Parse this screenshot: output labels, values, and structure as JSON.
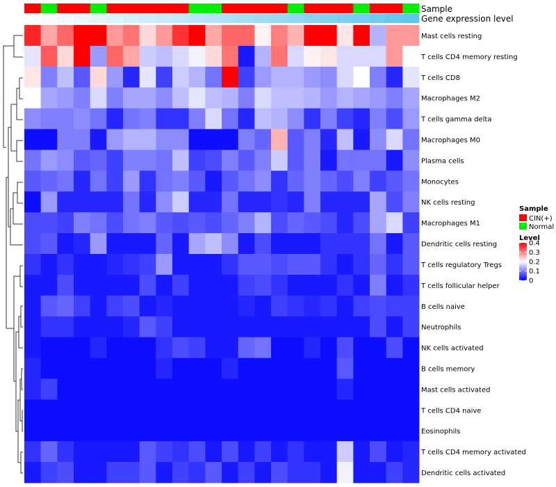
{
  "chart_data": {
    "type": "heatmap",
    "title": "",
    "annotations": {
      "sample_label": "Sample",
      "gene_label": "Gene expression level",
      "sample_groups": [
        "C",
        "N",
        "C",
        "C",
        "N",
        "C",
        "C",
        "C",
        "C",
        "C",
        "N",
        "N",
        "C",
        "C",
        "C",
        "C",
        "N",
        "C",
        "C",
        "C",
        "N",
        "C",
        "C",
        "N"
      ],
      "gene_levels": [
        0.0,
        0.04,
        0.09,
        0.13,
        0.17,
        0.22,
        0.26,
        0.3,
        0.35,
        0.39,
        0.43,
        0.48,
        0.52,
        0.57,
        0.61,
        0.65,
        0.7,
        0.74,
        0.78,
        0.83,
        0.87,
        0.91,
        0.96,
        1.0
      ]
    },
    "legend": {
      "sample_title": "Sample",
      "sample_items": [
        {
          "key": "C",
          "label": "CIN(+)",
          "color": "#ff0000"
        },
        {
          "key": "N",
          "label": "Normal",
          "color": "#00ee00"
        }
      ],
      "level_title": "Level",
      "level_ticks": [
        "0.4",
        "0.3",
        "0.2",
        "0.1",
        "0"
      ],
      "level_tick_values": [
        0.4,
        0.3,
        0.2,
        0.1,
        0
      ],
      "level_range": [
        0,
        0.4
      ],
      "low_color": "#0000ff",
      "mid_color": "#ffffff",
      "high_color": "#ff0000",
      "mid_value": 0.2
    },
    "rows": [
      "Mast cells resting",
      "T cells CD4 memory resting",
      "T cells CD8",
      "Macrophages M2",
      "T cells gamma delta",
      "Macrophages M0",
      "Plasma cells",
      "Monocytes",
      "NK cells resting",
      "Macrophages M1",
      "Dendritic cells resting",
      "T cells regulatory  Tregs",
      "T cells follicular helper",
      "B cells naive",
      "Neutrophils",
      "NK cells activated",
      "B cells memory",
      "Mast cells activated",
      "T cells CD4 naive",
      "Eosinophils",
      "T cells CD4 memory activated",
      "Dendritic cells activated"
    ],
    "values": [
      [
        0.37,
        0.27,
        0.32,
        0.4,
        0.4,
        0.28,
        0.31,
        0.23,
        0.28,
        0.36,
        0.4,
        0.27,
        0.32,
        0.32,
        0.21,
        0.3,
        0.26,
        0.4,
        0.4,
        0.22,
        0.4,
        0.14,
        0.28,
        0.28
      ],
      [
        0.18,
        0.33,
        0.23,
        0.4,
        0.12,
        0.32,
        0.27,
        0.16,
        0.15,
        0.17,
        0.19,
        0.23,
        0.31,
        0.02,
        0.14,
        0.31,
        0.17,
        0.21,
        0.22,
        0.17,
        0.17,
        0.17,
        0.28,
        0.2
      ],
      [
        0.22,
        0.1,
        0.15,
        0.07,
        0.23,
        0.12,
        0.03,
        0.18,
        0.05,
        0.16,
        0.14,
        0.09,
        0.4,
        0.05,
        0.12,
        0.14,
        0.14,
        0.12,
        0.11,
        0.17,
        0.2,
        0.1,
        0.03,
        0.18
      ],
      [
        0.2,
        0.13,
        0.12,
        0.1,
        0.17,
        0.1,
        0.13,
        0.13,
        0.11,
        0.15,
        0.18,
        0.15,
        0.14,
        0.1,
        0.17,
        0.15,
        0.15,
        0.14,
        0.12,
        0.14,
        0.13,
        0.12,
        0.1,
        0.13
      ],
      [
        0.11,
        0.1,
        0.1,
        0.11,
        0.09,
        0.03,
        0.09,
        0.1,
        0.04,
        0.04,
        0.1,
        0.17,
        0.09,
        0.03,
        0.15,
        0.14,
        0.11,
        0.04,
        0.1,
        0.05,
        0.03,
        0.1,
        0.06,
        0.12
      ],
      [
        0.01,
        0.01,
        0.1,
        0.1,
        0.02,
        0.12,
        0.14,
        0.14,
        0.11,
        0.11,
        0.01,
        0.01,
        0.01,
        0.1,
        0.08,
        0.26,
        0.07,
        0.1,
        0.03,
        0.15,
        0.02,
        0.11,
        0.17,
        0.09
      ],
      [
        0.09,
        0.12,
        0.11,
        0.07,
        0.08,
        0.05,
        0.1,
        0.1,
        0.09,
        0.15,
        0.05,
        0.06,
        0.1,
        0.07,
        0.1,
        0.16,
        0.07,
        0.1,
        0.02,
        0.09,
        0.09,
        0.09,
        0.02,
        0.11
      ],
      [
        0.07,
        0.08,
        0.09,
        0.03,
        0.09,
        0.05,
        0.12,
        0.04,
        0.09,
        0.1,
        0.07,
        0.02,
        0.07,
        0.09,
        0.11,
        0.04,
        0.08,
        0.1,
        0.08,
        0.06,
        0.1,
        0.05,
        0.07,
        0.09
      ],
      [
        0.01,
        0.12,
        0.03,
        0.03,
        0.03,
        0.03,
        0.09,
        0.03,
        0.11,
        0.16,
        0.03,
        0.03,
        0.09,
        0.03,
        0.03,
        0.04,
        0.03,
        0.1,
        0.03,
        0.03,
        0.03,
        0.13,
        0.06,
        0.1
      ],
      [
        0.06,
        0.06,
        0.05,
        0.1,
        0.09,
        0.06,
        0.09,
        0.1,
        0.07,
        0.06,
        0.07,
        0.06,
        0.08,
        0.1,
        0.14,
        0.06,
        0.08,
        0.07,
        0.06,
        0.03,
        0.06,
        0.13,
        0.17,
        0.05
      ],
      [
        0.06,
        0.07,
        0.02,
        0.03,
        0.12,
        0.02,
        0.02,
        0.02,
        0.08,
        0.02,
        0.13,
        0.15,
        0.11,
        0.02,
        0.06,
        0.02,
        0.02,
        0.02,
        0.04,
        0.04,
        0.04,
        0.09,
        0.02,
        0.07
      ],
      [
        0.04,
        0.02,
        0.04,
        0.02,
        0.02,
        0.03,
        0.04,
        0.05,
        0.12,
        0.02,
        0.02,
        0.02,
        0.04,
        0.07,
        0.07,
        0.06,
        0.07,
        0.07,
        0.04,
        0.02,
        0.04,
        0.08,
        0.04,
        0.07
      ],
      [
        0.02,
        0.02,
        0.06,
        0.02,
        0.02,
        0.02,
        0.02,
        0.06,
        0.02,
        0.05,
        0.02,
        0.02,
        0.02,
        0.05,
        0.06,
        0.04,
        0.02,
        0.02,
        0.02,
        0.04,
        0.02,
        0.1,
        0.02,
        0.04
      ],
      [
        0.02,
        0.07,
        0.08,
        0.05,
        0.02,
        0.05,
        0.06,
        0.02,
        0.03,
        0.02,
        0.02,
        0.02,
        0.02,
        0.03,
        0.02,
        0.05,
        0.04,
        0.03,
        0.04,
        0.02,
        0.05,
        0.06,
        0.05,
        0.05
      ],
      [
        0.02,
        0.04,
        0.04,
        0.02,
        0.02,
        0.02,
        0.03,
        0.07,
        0.05,
        0.02,
        0.02,
        0.02,
        0.02,
        0.02,
        0.02,
        0.02,
        0.02,
        0.02,
        0.02,
        0.02,
        0.02,
        0.06,
        0.02,
        0.05
      ],
      [
        0.02,
        0.01,
        0.01,
        0.01,
        0.03,
        0.01,
        0.01,
        0.01,
        0.04,
        0.06,
        0.05,
        0.02,
        0.02,
        0.08,
        0.09,
        0.01,
        0.01,
        0.03,
        0.01,
        0.06,
        0.01,
        0.01,
        0.06,
        0.01
      ],
      [
        0.03,
        0.01,
        0.01,
        0.01,
        0.01,
        0.01,
        0.01,
        0.01,
        0.03,
        0.01,
        0.01,
        0.01,
        0.03,
        0.01,
        0.01,
        0.01,
        0.01,
        0.01,
        0.01,
        0.07,
        0.01,
        0.01,
        0.01,
        0.01
      ],
      [
        0.03,
        0.05,
        0.01,
        0.01,
        0.01,
        0.01,
        0.01,
        0.01,
        0.01,
        0.01,
        0.01,
        0.01,
        0.01,
        0.01,
        0.01,
        0.01,
        0.01,
        0.01,
        0.01,
        0.03,
        0.01,
        0.01,
        0.01,
        0.01
      ],
      [
        0.01,
        0.01,
        0.01,
        0.01,
        0.01,
        0.01,
        0.01,
        0.01,
        0.01,
        0.01,
        0.01,
        0.01,
        0.01,
        0.01,
        0.01,
        0.01,
        0.01,
        0.01,
        0.01,
        0.01,
        0.01,
        0.01,
        0.01,
        0.01
      ],
      [
        0.01,
        0.01,
        0.01,
        0.01,
        0.01,
        0.01,
        0.01,
        0.01,
        0.01,
        0.01,
        0.01,
        0.01,
        0.01,
        0.01,
        0.01,
        0.01,
        0.01,
        0.01,
        0.01,
        0.01,
        0.01,
        0.01,
        0.01,
        0.01
      ],
      [
        0.04,
        0.08,
        0.04,
        0.02,
        0.02,
        0.02,
        0.02,
        0.07,
        0.05,
        0.04,
        0.06,
        0.02,
        0.06,
        0.02,
        0.05,
        0.02,
        0.04,
        0.02,
        0.02,
        0.16,
        0.02,
        0.06,
        0.02,
        0.03
      ],
      [
        0.02,
        0.05,
        0.06,
        0.02,
        0.02,
        0.05,
        0.05,
        0.07,
        0.02,
        0.05,
        0.04,
        0.07,
        0.02,
        0.05,
        0.02,
        0.06,
        0.04,
        0.04,
        0.02,
        0.19,
        0.02,
        0.02,
        0.05,
        0.03
      ]
    ]
  }
}
